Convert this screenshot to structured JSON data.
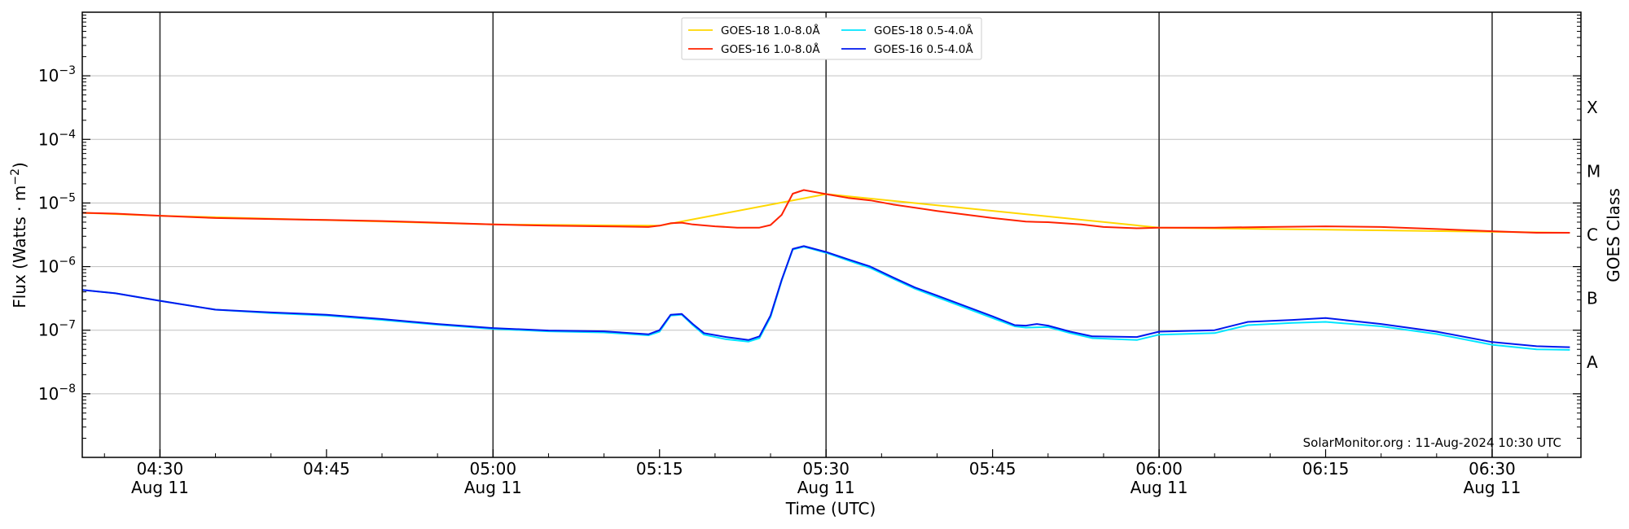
{
  "chart_data": {
    "type": "line",
    "title": "",
    "xlabel": "Time (UTC)",
    "ylabel": "Flux (Watts · m",
    "ylabel_sup": "−2",
    "ylabel_close": ")",
    "right_label": "GOES Class",
    "y_scale": "log",
    "ylim_exp": [
      -9,
      -2
    ],
    "y_ticks": [
      {
        "exp": -8,
        "base": "10",
        "sup": "−8"
      },
      {
        "exp": -7,
        "base": "10",
        "sup": "−7"
      },
      {
        "exp": -6,
        "base": "10",
        "sup": "−6"
      },
      {
        "exp": -5,
        "base": "10",
        "sup": "−5"
      },
      {
        "exp": -4,
        "base": "10",
        "sup": "−4"
      },
      {
        "exp": -3,
        "base": "10",
        "sup": "−3"
      }
    ],
    "classes": [
      {
        "label": "A",
        "exp": -7.5
      },
      {
        "label": "B",
        "exp": -6.5
      },
      {
        "label": "C",
        "exp": -5.5
      },
      {
        "label": "M",
        "exp": -4.5
      },
      {
        "label": "X",
        "exp": -3.5
      }
    ],
    "xlim": [
      "04:23",
      "06:38"
    ],
    "x_ticks": [
      {
        "time": "04:30",
        "label": "04:30",
        "sub": "Aug 11",
        "major": true
      },
      {
        "time": "04:45",
        "label": "04:45",
        "sub": "",
        "major": false
      },
      {
        "time": "05:00",
        "label": "05:00",
        "sub": "Aug 11",
        "major": true
      },
      {
        "time": "05:15",
        "label": "05:15",
        "sub": "",
        "major": false
      },
      {
        "time": "05:30",
        "label": "05:30",
        "sub": "Aug 11",
        "major": true
      },
      {
        "time": "05:45",
        "label": "05:45",
        "sub": "",
        "major": false
      },
      {
        "time": "06:00",
        "label": "06:00",
        "sub": "Aug 11",
        "major": true
      },
      {
        "time": "06:15",
        "label": "06:15",
        "sub": "",
        "major": false
      },
      {
        "time": "06:30",
        "label": "06:30",
        "sub": "Aug 11",
        "major": true
      }
    ],
    "legend_position": "top-center",
    "grid": true,
    "annotation": "SolarMonitor.org : 11-Aug-2024 10:30 UTC",
    "series": [
      {
        "name": "GOES-18 1.0-8.0Å",
        "color": "#ffd700",
        "points": [
          [
            "04:23",
            7e-06
          ],
          [
            "04:30",
            6.3e-06
          ],
          [
            "05:00",
            4.6e-06
          ],
          [
            "05:15",
            4.4e-06
          ],
          [
            "05:30",
            1.38e-05
          ],
          [
            "06:00",
            4.1e-06
          ],
          [
            "06:37",
            3.4e-06
          ]
        ]
      },
      {
        "name": "GOES-16 1.0-8.0Å",
        "color": "#ff2200",
        "points": [
          [
            "04:23",
            7e-06
          ],
          [
            "04:26",
            6.8e-06
          ],
          [
            "04:30",
            6.3e-06
          ],
          [
            "04:35",
            5.8e-06
          ],
          [
            "04:40",
            5.6e-06
          ],
          [
            "04:45",
            5.4e-06
          ],
          [
            "04:50",
            5.2e-06
          ],
          [
            "04:55",
            4.9e-06
          ],
          [
            "05:00",
            4.6e-06
          ],
          [
            "05:05",
            4.4e-06
          ],
          [
            "05:10",
            4.3e-06
          ],
          [
            "05:14",
            4.2e-06
          ],
          [
            "05:15",
            4.4e-06
          ],
          [
            "05:16",
            4.8e-06
          ],
          [
            "05:17",
            4.9e-06
          ],
          [
            "05:18",
            4.6e-06
          ],
          [
            "05:20",
            4.3e-06
          ],
          [
            "05:22",
            4.1e-06
          ],
          [
            "05:24",
            4.1e-06
          ],
          [
            "05:25",
            4.5e-06
          ],
          [
            "05:26",
            6.5e-06
          ],
          [
            "05:27",
            1.4e-05
          ],
          [
            "05:28",
            1.6e-05
          ],
          [
            "05:30",
            1.38e-05
          ],
          [
            "05:32",
            1.2e-05
          ],
          [
            "05:34",
            1.1e-05
          ],
          [
            "05:36",
            9.5e-06
          ],
          [
            "05:40",
            7.5e-06
          ],
          [
            "05:45",
            5.8e-06
          ],
          [
            "05:48",
            5.1e-06
          ],
          [
            "05:50",
            5e-06
          ],
          [
            "05:53",
            4.6e-06
          ],
          [
            "05:55",
            4.2e-06
          ],
          [
            "05:58",
            4e-06
          ],
          [
            "06:00",
            4.1e-06
          ],
          [
            "06:05",
            4.1e-06
          ],
          [
            "06:10",
            4.2e-06
          ],
          [
            "06:15",
            4.3e-06
          ],
          [
            "06:20",
            4.2e-06
          ],
          [
            "06:25",
            3.9e-06
          ],
          [
            "06:30",
            3.6e-06
          ],
          [
            "06:34",
            3.4e-06
          ],
          [
            "06:37",
            3.4e-06
          ]
        ]
      },
      {
        "name": "GOES-18 0.5-4.0Å",
        "color": "#00e5ff",
        "points": [
          [
            "04:23",
            4.3e-07
          ],
          [
            "04:26",
            3.8e-07
          ],
          [
            "04:30",
            2.9e-07
          ],
          [
            "04:35",
            2.1e-07
          ],
          [
            "04:40",
            1.85e-07
          ],
          [
            "04:45",
            1.7e-07
          ],
          [
            "04:50",
            1.45e-07
          ],
          [
            "04:55",
            1.22e-07
          ],
          [
            "05:00",
            1.05e-07
          ],
          [
            "05:05",
            9.6e-08
          ],
          [
            "05:10",
            9.2e-08
          ],
          [
            "05:14",
            8.3e-08
          ],
          [
            "05:15",
            9.5e-08
          ],
          [
            "05:16",
            1.7e-07
          ],
          [
            "05:17",
            1.75e-07
          ],
          [
            "05:18",
            1.2e-07
          ],
          [
            "05:19",
            8.5e-08
          ],
          [
            "05:21",
            7.2e-08
          ],
          [
            "05:23",
            6.6e-08
          ],
          [
            "05:24",
            7.5e-08
          ],
          [
            "05:25",
            1.6e-07
          ],
          [
            "05:26",
            6e-07
          ],
          [
            "05:27",
            1.85e-06
          ],
          [
            "05:28",
            2.05e-06
          ],
          [
            "05:30",
            1.65e-06
          ],
          [
            "05:32",
            1.25e-06
          ],
          [
            "05:34",
            9.5e-07
          ],
          [
            "05:36",
            6.5e-07
          ],
          [
            "05:38",
            4.5e-07
          ],
          [
            "05:40",
            3.3e-07
          ],
          [
            "05:45",
            1.55e-07
          ],
          [
            "05:47",
            1.15e-07
          ],
          [
            "05:48",
            1.1e-07
          ],
          [
            "05:50",
            1.12e-07
          ],
          [
            "05:52",
            9e-08
          ],
          [
            "05:54",
            7.5e-08
          ],
          [
            "05:58",
            7e-08
          ],
          [
            "06:00",
            8.5e-08
          ],
          [
            "06:05",
            9e-08
          ],
          [
            "06:08",
            1.2e-07
          ],
          [
            "06:12",
            1.3e-07
          ],
          [
            "06:15",
            1.35e-07
          ],
          [
            "06:20",
            1.15e-07
          ],
          [
            "06:25",
            8.7e-08
          ],
          [
            "06:30",
            5.9e-08
          ],
          [
            "06:34",
            5e-08
          ],
          [
            "06:37",
            4.9e-08
          ]
        ]
      },
      {
        "name": "GOES-16 0.5-4.0Å",
        "color": "#0018ee",
        "points": [
          [
            "04:23",
            4.3e-07
          ],
          [
            "04:26",
            3.8e-07
          ],
          [
            "04:30",
            2.9e-07
          ],
          [
            "04:35",
            2.1e-07
          ],
          [
            "04:40",
            1.9e-07
          ],
          [
            "04:45",
            1.75e-07
          ],
          [
            "04:50",
            1.5e-07
          ],
          [
            "04:55",
            1.25e-07
          ],
          [
            "05:00",
            1.08e-07
          ],
          [
            "05:05",
            9.9e-08
          ],
          [
            "05:10",
            9.6e-08
          ],
          [
            "05:14",
            8.6e-08
          ],
          [
            "05:15",
            1e-07
          ],
          [
            "05:16",
            1.75e-07
          ],
          [
            "05:17",
            1.8e-07
          ],
          [
            "05:18",
            1.25e-07
          ],
          [
            "05:19",
            9e-08
          ],
          [
            "05:21",
            7.8e-08
          ],
          [
            "05:23",
            7e-08
          ],
          [
            "05:24",
            8e-08
          ],
          [
            "05:25",
            1.7e-07
          ],
          [
            "05:26",
            6.2e-07
          ],
          [
            "05:27",
            1.9e-06
          ],
          [
            "05:28",
            2.1e-06
          ],
          [
            "05:30",
            1.7e-06
          ],
          [
            "05:32",
            1.3e-06
          ],
          [
            "05:34",
            1e-06
          ],
          [
            "05:36",
            6.8e-07
          ],
          [
            "05:38",
            4.7e-07
          ],
          [
            "05:40",
            3.5e-07
          ],
          [
            "05:45",
            1.65e-07
          ],
          [
            "05:47",
            1.2e-07
          ],
          [
            "05:48",
            1.18e-07
          ],
          [
            "05:49",
            1.25e-07
          ],
          [
            "05:50",
            1.18e-07
          ],
          [
            "05:52",
            9.5e-08
          ],
          [
            "05:54",
            8e-08
          ],
          [
            "05:58",
            7.8e-08
          ],
          [
            "06:00",
            9.5e-08
          ],
          [
            "06:05",
            1e-07
          ],
          [
            "06:08",
            1.35e-07
          ],
          [
            "06:12",
            1.45e-07
          ],
          [
            "06:15",
            1.55e-07
          ],
          [
            "06:20",
            1.25e-07
          ],
          [
            "06:25",
            9.5e-08
          ],
          [
            "06:30",
            6.5e-08
          ],
          [
            "06:34",
            5.6e-08
          ],
          [
            "06:37",
            5.4e-08
          ]
        ]
      }
    ]
  }
}
